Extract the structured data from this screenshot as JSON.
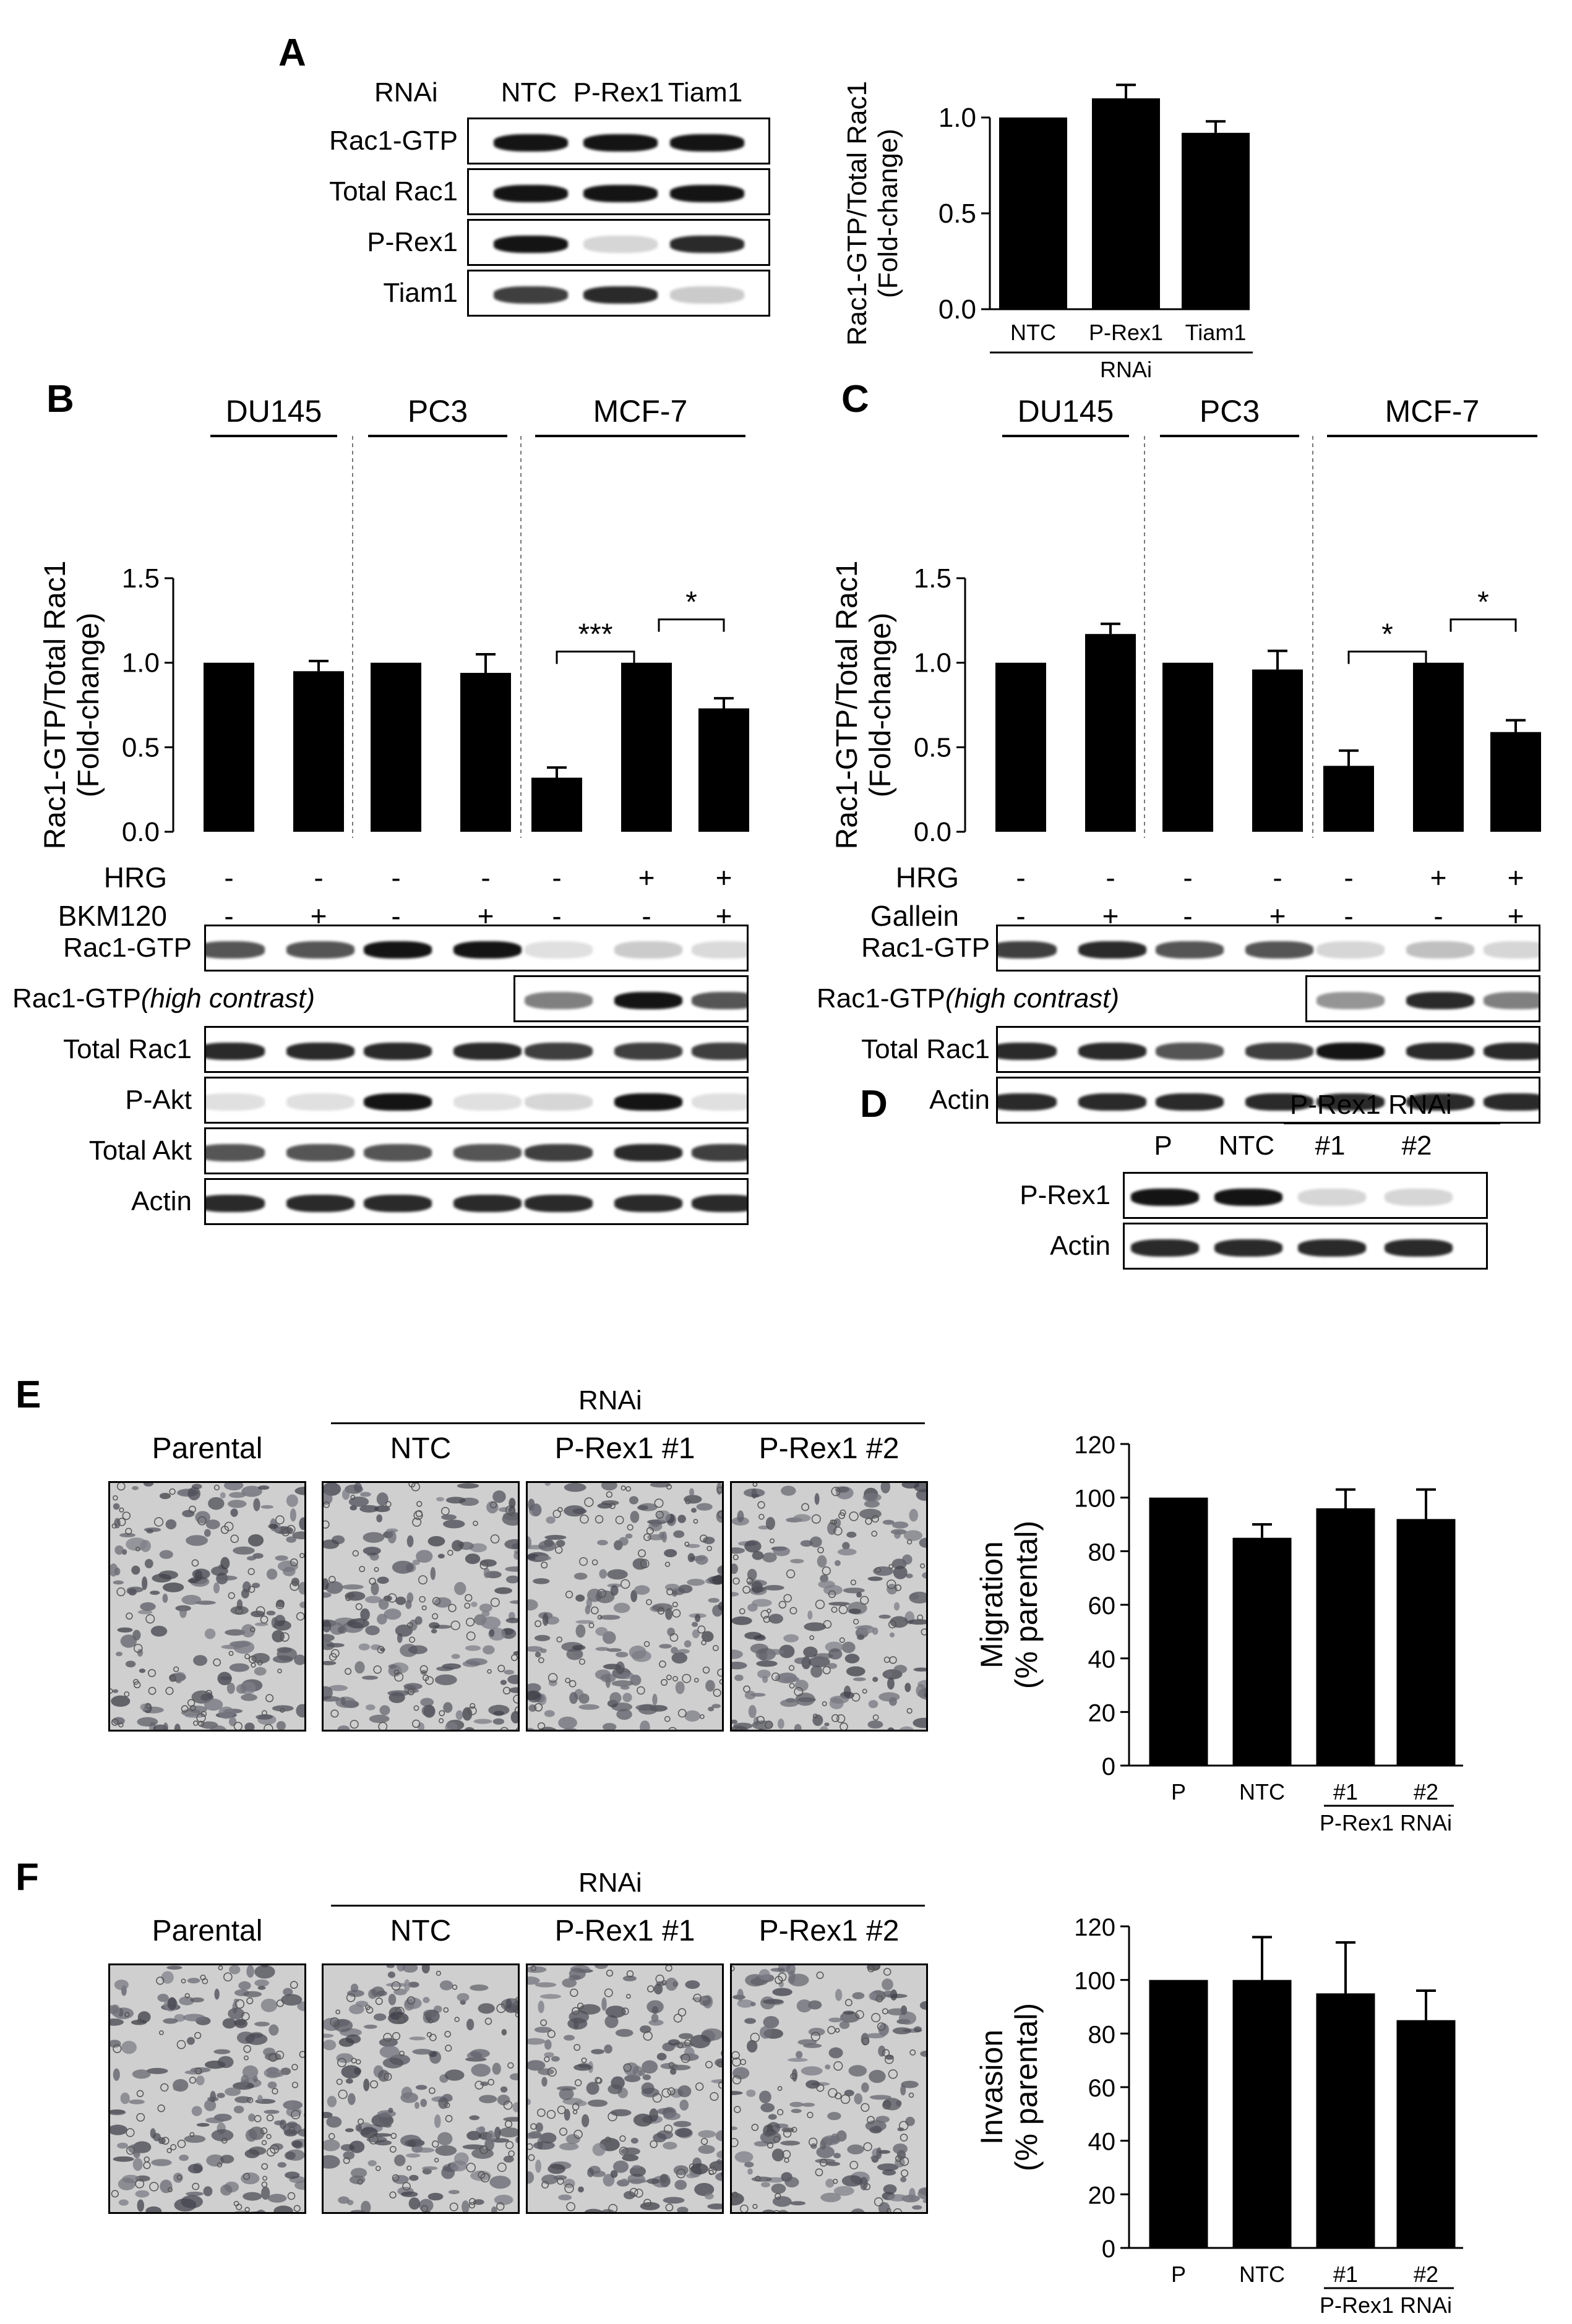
{
  "panels": {
    "A": {
      "letter": "A",
      "blot": {
        "header_label": "RNAi",
        "lanes": [
          "NTC",
          "P-Rex1",
          "Tiam1"
        ],
        "rows": [
          {
            "label": "Rac1-GTP",
            "intensity": [
              1,
              1,
              1
            ]
          },
          {
            "label": "Total Rac1",
            "intensity": [
              1,
              1,
              1
            ]
          },
          {
            "label": "P-Rex1",
            "intensity": [
              1,
              0.1,
              0.9
            ]
          },
          {
            "label": "Tiam1",
            "intensity": [
              0.8,
              0.9,
              0.15
            ]
          }
        ]
      }
    },
    "B": {
      "letter": "B",
      "cell_lines": [
        "DU145",
        "PC3",
        "MCF-7"
      ],
      "treatments": [
        {
          "label": "HRG",
          "signs": [
            "-",
            "-",
            "-",
            "-",
            "-",
            "+",
            "+"
          ]
        },
        {
          "label": "BKM120",
          "signs": [
            "-",
            "+",
            "-",
            "+",
            "-",
            "-",
            "+"
          ]
        }
      ],
      "significance": [
        "***",
        "*"
      ],
      "blot_rows": [
        {
          "label": "Rac1-GTP",
          "italic_note": "",
          "intensity": [
            0.7,
            0.7,
            1,
            1,
            0.05,
            0.15,
            0.08
          ]
        },
        {
          "label": "Rac1-GTP",
          "italic_note": "(high contrast)",
          "intensity": [
            0,
            0,
            0,
            0,
            0.5,
            1,
            0.7
          ]
        },
        {
          "label": "Total Rac1",
          "italic_note": "",
          "intensity": [
            0.9,
            0.9,
            0.9,
            0.9,
            0.8,
            0.8,
            0.8
          ]
        },
        {
          "label": "P-Akt",
          "italic_note": "",
          "intensity": [
            0.05,
            0.05,
            1,
            0.05,
            0.1,
            1,
            0.05
          ]
        },
        {
          "label": "Total Akt",
          "italic_note": "",
          "intensity": [
            0.7,
            0.7,
            0.7,
            0.7,
            0.8,
            0.9,
            0.8
          ]
        },
        {
          "label": "Actin",
          "intensity": [
            0.9,
            0.9,
            0.9,
            0.9,
            0.9,
            0.9,
            0.9
          ],
          "italic_note": ""
        }
      ]
    },
    "C": {
      "letter": "C",
      "cell_lines": [
        "DU145",
        "PC3",
        "MCF-7"
      ],
      "treatments": [
        {
          "label": "HRG",
          "signs": [
            "-",
            "-",
            "-",
            "-",
            "-",
            "+",
            "+"
          ]
        },
        {
          "label": "Gallein",
          "signs": [
            "-",
            "+",
            "-",
            "+",
            "-",
            "-",
            "+"
          ]
        }
      ],
      "significance": [
        "*",
        "*"
      ],
      "blot_rows": [
        {
          "label": "Rac1-GTP",
          "italic_note": "",
          "intensity": [
            0.8,
            0.9,
            0.7,
            0.7,
            0.1,
            0.2,
            0.1
          ]
        },
        {
          "label": "Rac1-GTP",
          "italic_note": "(high contrast)",
          "intensity": [
            0,
            0,
            0,
            0,
            0.4,
            0.9,
            0.5
          ]
        },
        {
          "label": "Total Rac1",
          "italic_note": "",
          "intensity": [
            0.9,
            0.9,
            0.7,
            0.8,
            1,
            0.9,
            0.9
          ]
        },
        {
          "label": "Actin",
          "italic_note": "",
          "intensity": [
            0.9,
            0.9,
            0.9,
            0.9,
            0.9,
            0.9,
            0.9
          ]
        }
      ]
    },
    "D": {
      "letter": "D",
      "group_label": "P-Rex1 RNAi",
      "lanes": [
        "P",
        "NTC",
        "#1",
        "#2"
      ],
      "rows": [
        {
          "label": "P-Rex1",
          "intensity": [
            1,
            1,
            0.1,
            0.1
          ]
        },
        {
          "label": "Actin",
          "intensity": [
            0.9,
            0.9,
            0.9,
            0.9
          ]
        }
      ]
    },
    "E": {
      "letter": "E",
      "group_label": "RNAi",
      "image_labels": [
        "Parental",
        "NTC",
        "P-Rex1 #1",
        "P-Rex1 #2"
      ]
    },
    "F": {
      "letter": "F",
      "group_label": "RNAi",
      "image_labels": [
        "Parental",
        "NTC",
        "P-Rex1 #1",
        "P-Rex1 #2"
      ]
    }
  },
  "chart_data": [
    {
      "id": "A",
      "type": "bar",
      "categories": [
        "NTC",
        "P-Rex1",
        "Tiam1"
      ],
      "values": [
        1.0,
        1.1,
        0.92
      ],
      "errors": [
        0,
        0.07,
        0.06
      ],
      "ylabel": "Rac1-GTP/Total Rac1",
      "ylabel2": "(Fold-change)",
      "xgroup_label": "RNAi",
      "ylim": [
        0,
        1.0
      ],
      "yticks": [
        "0.0",
        "0.5",
        "1.0"
      ]
    },
    {
      "id": "B",
      "type": "bar",
      "categories": [
        "DU145 -",
        "DU145 BKM120",
        "PC3 -",
        "PC3 BKM120",
        "MCF-7 -",
        "MCF-7 HRG",
        "MCF-7 HRG+BKM120"
      ],
      "values": [
        1.0,
        0.95,
        1.0,
        0.94,
        0.32,
        1.0,
        0.73
      ],
      "errors": [
        0,
        0.06,
        0,
        0.11,
        0.06,
        0,
        0.06
      ],
      "ylabel": "Rac1-GTP/Total Rac1",
      "ylabel2": "(Fold-change)",
      "ylim": [
        0,
        1.5
      ],
      "yticks": [
        "0.0",
        "0.5",
        "1.0",
        "1.5"
      ]
    },
    {
      "id": "C",
      "type": "bar",
      "categories": [
        "DU145 -",
        "DU145 Gallein",
        "PC3 -",
        "PC3 Gallein",
        "MCF-7 -",
        "MCF-7 HRG",
        "MCF-7 HRG+Gallein"
      ],
      "values": [
        1.0,
        1.17,
        1.0,
        0.96,
        0.39,
        1.0,
        0.59
      ],
      "errors": [
        0,
        0.06,
        0,
        0.11,
        0.09,
        0,
        0.07
      ],
      "ylabel": "Rac1-GTP/Total Rac1",
      "ylabel2": "(Fold-change)",
      "ylim": [
        0,
        1.5
      ],
      "yticks": [
        "0.0",
        "0.5",
        "1.0",
        "1.5"
      ]
    },
    {
      "id": "E",
      "type": "bar",
      "categories": [
        "P",
        "NTC",
        "#1",
        "#2"
      ],
      "values": [
        100,
        85,
        96,
        92
      ],
      "errors": [
        0,
        5,
        7,
        11
      ],
      "ylabel": "Migration",
      "ylabel2": "(% parental)",
      "xgroup_label": "P-Rex1 RNAi",
      "ylim": [
        0,
        120
      ],
      "yticks": [
        "0",
        "20",
        "40",
        "60",
        "80",
        "100",
        "120"
      ]
    },
    {
      "id": "F",
      "type": "bar",
      "categories": [
        "P",
        "NTC",
        "#1",
        "#2"
      ],
      "values": [
        100,
        100,
        95,
        85
      ],
      "errors": [
        0,
        16,
        19,
        11
      ],
      "ylabel": "Invasion",
      "ylabel2": "(% parental)",
      "xgroup_label": "P-Rex1 RNAi",
      "ylim": [
        0,
        120
      ],
      "yticks": [
        "0",
        "20",
        "40",
        "60",
        "80",
        "100",
        "120"
      ]
    }
  ]
}
